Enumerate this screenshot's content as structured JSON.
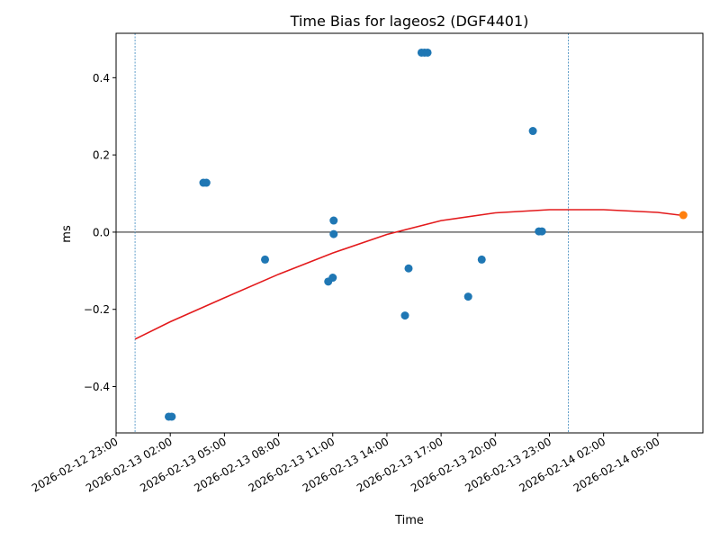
{
  "chart_data": {
    "type": "scatter",
    "title": "Time Bias for lageos2 (DGF4401)",
    "xlabel": "Time",
    "ylabel": "ms",
    "xlim": [
      "2026-02-12 23:00",
      "2026-02-14 07:30"
    ],
    "ylim": [
      -0.52,
      0.515
    ],
    "x_ticks": [
      "2026-02-12 23:00",
      "2026-02-13 02:00",
      "2026-02-13 05:00",
      "2026-02-13 08:00",
      "2026-02-13 11:00",
      "2026-02-13 14:00",
      "2026-02-13 17:00",
      "2026-02-13 20:00",
      "2026-02-13 23:00",
      "2026-02-14 02:00",
      "2026-02-14 05:00"
    ],
    "y_ticks": [
      -0.4,
      -0.2,
      0.0,
      0.2,
      0.4
    ],
    "y_tick_labels": [
      "−0.4",
      "−0.2",
      "0.0",
      "0.2",
      "0.4"
    ],
    "grid": false,
    "legend": "none",
    "hline_y": 0.0,
    "vlines_x": [
      "2026-02-13 00:03",
      "2026-02-14 00:03"
    ],
    "colors": {
      "points": "#1f77b4",
      "highlight": "#ff7f0e",
      "fit": "#e31a1c",
      "vline": "#1f77b4",
      "hline": "#000000"
    },
    "series": [
      {
        "marker": "circle",
        "color": "#1f77b4",
        "points": [
          {
            "x": "2026-02-13 01:55",
            "y": -0.478
          },
          {
            "x": "2026-02-13 02:05",
            "y": -0.478
          },
          {
            "x": "2026-02-13 03:50",
            "y": 0.128
          },
          {
            "x": "2026-02-13 04:00",
            "y": 0.128
          },
          {
            "x": "2026-02-13 07:15",
            "y": -0.071
          },
          {
            "x": "2026-02-13 10:45",
            "y": -0.128
          },
          {
            "x": "2026-02-13 11:00",
            "y": -0.118
          },
          {
            "x": "2026-02-13 11:03",
            "y": 0.03
          },
          {
            "x": "2026-02-13 11:03",
            "y": -0.005
          },
          {
            "x": "2026-02-13 15:00",
            "y": -0.216
          },
          {
            "x": "2026-02-13 15:12",
            "y": -0.094
          },
          {
            "x": "2026-02-13 15:55",
            "y": 0.465
          },
          {
            "x": "2026-02-13 16:05",
            "y": 0.465
          },
          {
            "x": "2026-02-13 16:15",
            "y": 0.465
          },
          {
            "x": "2026-02-13 18:30",
            "y": -0.167
          },
          {
            "x": "2026-02-13 19:15",
            "y": -0.071
          },
          {
            "x": "2026-02-13 22:05",
            "y": 0.262
          },
          {
            "x": "2026-02-13 22:25",
            "y": 0.002
          },
          {
            "x": "2026-02-13 22:35",
            "y": 0.002
          }
        ]
      },
      {
        "marker": "circle",
        "color": "#ff7f0e",
        "points": [
          {
            "x": "2026-02-14 06:25",
            "y": 0.044
          }
        ]
      }
    ],
    "fit_curve": {
      "color": "#e31a1c",
      "points": [
        {
          "x": "2026-02-13 00:03",
          "y": -0.277
        },
        {
          "x": "2026-02-13 02:00",
          "y": -0.232
        },
        {
          "x": "2026-02-13 05:00",
          "y": -0.17
        },
        {
          "x": "2026-02-13 08:00",
          "y": -0.109
        },
        {
          "x": "2026-02-13 11:00",
          "y": -0.054
        },
        {
          "x": "2026-02-13 14:00",
          "y": -0.006
        },
        {
          "x": "2026-02-13 17:00",
          "y": 0.03
        },
        {
          "x": "2026-02-13 20:00",
          "y": 0.05
        },
        {
          "x": "2026-02-13 23:00",
          "y": 0.058
        },
        {
          "x": "2026-02-14 02:00",
          "y": 0.058
        },
        {
          "x": "2026-02-14 05:00",
          "y": 0.051
        },
        {
          "x": "2026-02-14 06:25",
          "y": 0.043
        }
      ]
    }
  }
}
